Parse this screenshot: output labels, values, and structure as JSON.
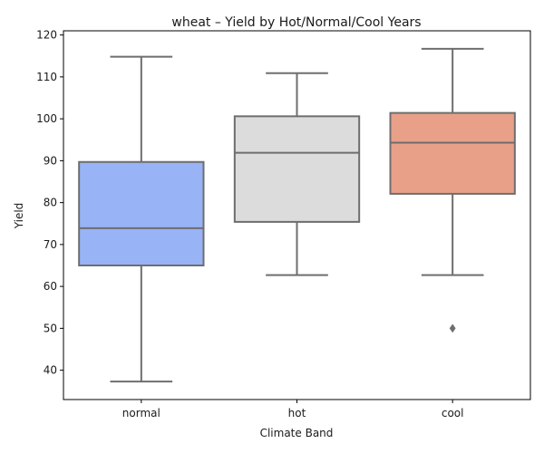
{
  "chart_data": {
    "type": "box",
    "title": "wheat – Yield by Hot/Normal/Cool Years",
    "xlabel": "Climate Band",
    "ylabel": "Yield",
    "ylim": [
      33,
      121
    ],
    "yticks": [
      40,
      50,
      60,
      70,
      80,
      90,
      100,
      110,
      120
    ],
    "grid": false,
    "categories": [
      "normal",
      "hot",
      "cool"
    ],
    "series": [
      {
        "category": "normal",
        "color": "#98b3f6",
        "whisker_low": 37.3,
        "q1": 65.0,
        "median": 73.9,
        "q3": 89.7,
        "whisker_high": 114.8,
        "outliers": []
      },
      {
        "category": "hot",
        "color": "#dcdcdc",
        "whisker_low": 62.7,
        "q1": 75.4,
        "median": 91.9,
        "q3": 100.6,
        "whisker_high": 110.9,
        "outliers": []
      },
      {
        "category": "cool",
        "color": "#e8a089",
        "whisker_low": 62.7,
        "q1": 82.1,
        "median": 94.3,
        "q3": 101.4,
        "whisker_high": 116.7,
        "outliers": [
          50.0
        ]
      }
    ]
  }
}
